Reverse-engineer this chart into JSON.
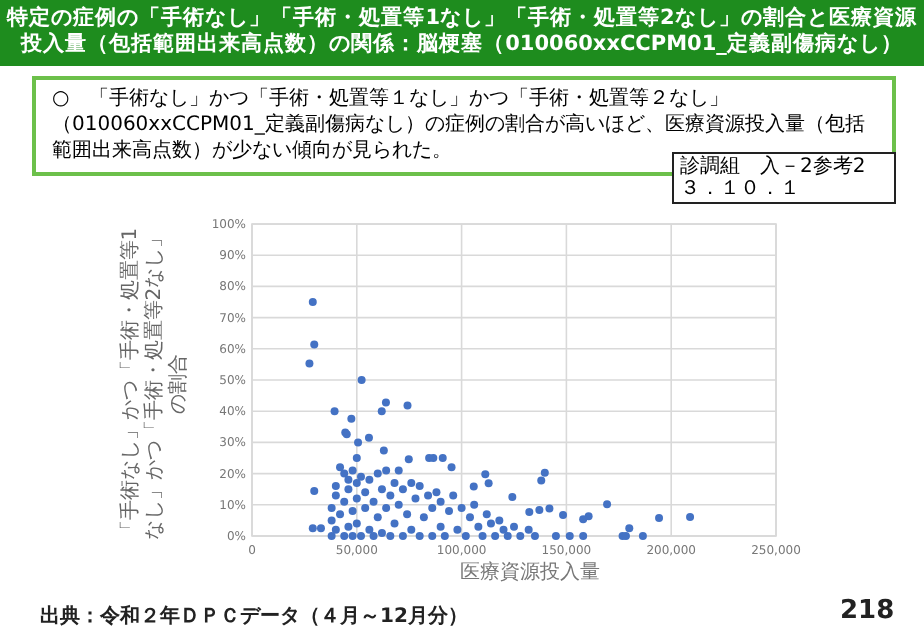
{
  "chart_data": {
    "type": "scatter",
    "title": "特定の症例の「手術なし」「手術・処置等1なし」「手術・処置等2なし」の割合と医療資源投入量（包括範囲出来高点数）の関係：脳梗塞（010060xxCCPM01_定義副傷病なし）",
    "ylabel": "「手術なし」かつ「手術・処置等1なし」かつ「手術・処置等2なし」の割合",
    "xlabel": "医療資源投入量",
    "annotations": [
      "○　「手術なし」かつ「手術・処置等１なし」かつ「手術・処置等２なし」（010060xxCCPM01_定義副傷病なし）の症例の割合が高いほど、医療資源投入量（包括範囲出来高点数）が少ない傾向が見られた。",
      "診調組　入－2参考2",
      "３．１０．１",
      "出典：令和２年ＤＰＣデータ（４月～12月分）",
      "218"
    ],
    "color": "#4472c4",
    "marker": "circle",
    "grid": true,
    "x": [
      29000,
      29700,
      27400,
      52300,
      39400,
      63900,
      74200,
      61900,
      47400,
      44500,
      45200,
      50600,
      55800,
      50000,
      62900,
      74800,
      84500,
      86500,
      91000,
      95200,
      111300,
      139700,
      138000,
      112900,
      105800,
      29700,
      124200,
      169400,
      209000,
      194200,
      160600,
      158000,
      148400,
      137100,
      141900,
      132300,
      180000,
      176800,
      186500,
      178400,
      158000,
      151600,
      29000,
      32900,
      38000,
      38000,
      38000,
      40000,
      40000,
      40000,
      42000,
      42000,
      44000,
      44000,
      44000,
      46000,
      46000,
      46000,
      48000,
      48000,
      48000,
      50000,
      50000,
      50000,
      52000,
      52000,
      54000,
      54000,
      56000,
      56000,
      58000,
      58000,
      60000,
      60000,
      62000,
      62000,
      64000,
      64000,
      66000,
      66000,
      68000,
      68000,
      70000,
      70000,
      72000,
      72000,
      74000,
      76000,
      76000,
      78000,
      80000,
      80000,
      82000,
      84000,
      86000,
      86000,
      88000,
      90000,
      90000,
      92000,
      94000,
      96000,
      98000,
      100000,
      102000,
      104000,
      106000,
      108000,
      110000,
      112000,
      114000,
      116000,
      118000,
      120000,
      122000,
      125000,
      128000,
      132000,
      135000,
      145000
    ],
    "values": [
      75,
      61.4,
      55.3,
      50,
      40,
      42.8,
      41.8,
      40,
      37.6,
      33.2,
      32.6,
      30,
      31.5,
      25,
      27.4,
      24.6,
      25,
      25,
      25,
      22,
      19.8,
      20.3,
      17.8,
      16.9,
      15.9,
      14.4,
      12.5,
      10.2,
      6.1,
      5.8,
      6.3,
      5.4,
      6.7,
      8.3,
      8.8,
      7.7,
      2.5,
      0,
      0,
      0,
      0,
      0,
      2.5,
      2.5,
      0,
      5,
      9,
      2,
      13,
      16,
      22,
      7,
      0,
      11,
      20,
      3,
      15,
      18,
      0,
      8,
      21,
      12,
      17,
      4,
      0,
      19,
      9,
      14,
      2,
      18,
      0,
      11,
      20,
      6,
      15,
      1,
      21,
      9,
      0,
      13,
      17,
      4,
      21,
      10,
      0,
      15,
      7,
      17,
      2,
      12,
      0,
      16,
      6,
      13,
      0,
      9,
      14,
      3,
      11,
      0,
      8,
      13,
      2,
      9,
      0,
      6,
      10,
      3,
      0,
      7,
      4,
      0,
      5,
      2,
      0,
      3,
      0,
      2,
      0,
      0
    ],
    "xlim": [
      0,
      250000
    ],
    "xticks": [
      0,
      {
        "value": 50000,
        "label": "50,000"
      },
      {
        "value": 100000,
        "label": "100,000"
      },
      {
        "value": 150000,
        "label": "150,000"
      },
      {
        "value": 200000,
        "label": "200,000"
      },
      {
        "value": 250000,
        "label": "250,000"
      }
    ],
    "ylim": [
      0,
      100
    ],
    "yticks": [
      {
        "value": 0,
        "label": "0%"
      },
      {
        "value": 10,
        "label": "10%"
      },
      {
        "value": 20,
        "label": "20%"
      },
      {
        "value": 30,
        "label": "30%"
      },
      {
        "value": 40,
        "label": "40%"
      },
      {
        "value": 50,
        "label": "50%"
      },
      {
        "value": 60,
        "label": "60%"
      },
      {
        "value": 70,
        "label": "70%"
      },
      {
        "value": 80,
        "label": "80%"
      },
      {
        "value": 90,
        "label": "90%"
      },
      {
        "value": 100,
        "label": "100%"
      }
    ]
  }
}
